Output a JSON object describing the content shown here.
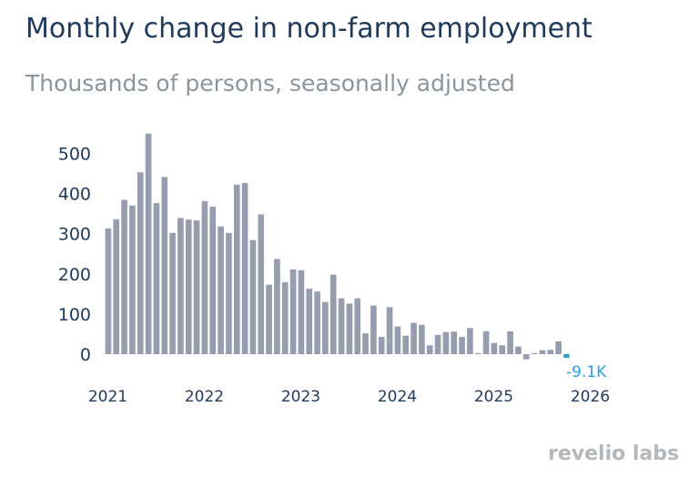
{
  "title": "Monthly change in non-farm employment",
  "subtitle": "Thousands of persons, seasonally adjusted",
  "brand": "revelio labs",
  "colors": {
    "bar": "#959dae",
    "highlight": "#2aa1d9",
    "title": "#1f3a5a",
    "subtitle": "#8c949c"
  },
  "chart_data": {
    "type": "bar",
    "x_start": "2021-01",
    "x_ticks": [
      "2021",
      "2022",
      "2023",
      "2024",
      "2025",
      "2026"
    ],
    "y_ticks": [
      "0",
      "100",
      "200",
      "300",
      "400",
      "500"
    ],
    "ylim": [
      -20,
      560
    ],
    "grid": false,
    "annotation": "-9.1K",
    "values": [
      313,
      336,
      384,
      370,
      453,
      549,
      376,
      441,
      302,
      339,
      335,
      333,
      381,
      367,
      318,
      302,
      422,
      426,
      284,
      348,
      173,
      237,
      179,
      211,
      209,
      163,
      156,
      130,
      198,
      139,
      126,
      139,
      52,
      121,
      43,
      117,
      69,
      46,
      78,
      73,
      22,
      48,
      55,
      56,
      43,
      65,
      2,
      57,
      28,
      22,
      57,
      19,
      -13,
      1,
      10,
      11,
      32,
      -9.1
    ]
  }
}
